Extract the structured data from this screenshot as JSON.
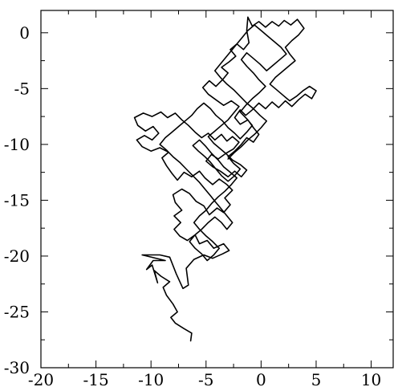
{
  "chart_data": {
    "type": "line",
    "title": "",
    "xlabel": "",
    "ylabel": "",
    "xlim": [
      -20,
      12
    ],
    "ylim": [
      -30,
      2
    ],
    "x_ticks": [
      -20,
      -15,
      -10,
      -5,
      0,
      5,
      10
    ],
    "y_ticks": [
      -30,
      -25,
      -20,
      -15,
      -10,
      -5,
      0
    ],
    "x_tick_labels": [
      "-20",
      "-15",
      "-10",
      "-5",
      "0",
      "5",
      "10"
    ],
    "y_tick_labels": [
      "-30",
      "-25",
      "-20",
      "-15",
      "-10",
      "-5",
      "0"
    ],
    "x_minor_step": 2.5,
    "y_minor_step": 2.5,
    "grid": false,
    "legend": "none",
    "line_color": "#000000",
    "series": [
      {
        "points": [
          [
            -6.4,
            -27.6
          ],
          [
            -6.3,
            -26.9
          ],
          [
            -7.0,
            -26.5
          ],
          [
            -7.8,
            -26.0
          ],
          [
            -8.2,
            -25.5
          ],
          [
            -7.6,
            -25.0
          ],
          [
            -8.0,
            -24.3
          ],
          [
            -8.6,
            -23.5
          ],
          [
            -8.9,
            -22.8
          ],
          [
            -8.3,
            -22.3
          ],
          [
            -9.1,
            -21.8
          ],
          [
            -9.7,
            -21.3
          ],
          [
            -9.4,
            -22.4
          ],
          [
            -9.9,
            -20.8
          ],
          [
            -10.4,
            -21.2
          ],
          [
            -9.8,
            -20.4
          ],
          [
            -8.7,
            -20.4
          ],
          [
            -10.8,
            -19.9
          ],
          [
            -9.2,
            -19.9
          ],
          [
            -8.3,
            -20.1
          ],
          [
            -7.7,
            -21.6
          ],
          [
            -7.1,
            -22.9
          ],
          [
            -6.6,
            -22.6
          ],
          [
            -6.8,
            -21.1
          ],
          [
            -6.1,
            -20.3
          ],
          [
            -5.2,
            -19.9
          ],
          [
            -4.4,
            -20.2
          ],
          [
            -3.5,
            -19.8
          ],
          [
            -2.9,
            -19.5
          ],
          [
            -3.4,
            -18.9
          ],
          [
            -4.3,
            -19.3
          ],
          [
            -4.9,
            -18.6
          ],
          [
            -5.6,
            -18.9
          ],
          [
            -6.0,
            -18.1
          ],
          [
            -6.7,
            -18.6
          ],
          [
            -7.4,
            -18.2
          ],
          [
            -7.9,
            -17.6
          ],
          [
            -7.3,
            -17.0
          ],
          [
            -7.9,
            -16.4
          ],
          [
            -7.2,
            -15.9
          ],
          [
            -7.8,
            -15.2
          ],
          [
            -8.0,
            -14.5
          ],
          [
            -7.2,
            -14.0
          ],
          [
            -6.5,
            -14.4
          ],
          [
            -5.9,
            -15.1
          ],
          [
            -5.2,
            -15.5
          ],
          [
            -4.7,
            -16.3
          ],
          [
            -4.0,
            -15.7
          ],
          [
            -3.4,
            -16.1
          ],
          [
            -2.8,
            -15.4
          ],
          [
            -3.3,
            -14.8
          ],
          [
            -2.6,
            -14.1
          ],
          [
            -3.1,
            -13.6
          ],
          [
            -3.8,
            -13.1
          ],
          [
            -4.4,
            -13.6
          ],
          [
            -5.1,
            -13.0
          ],
          [
            -5.6,
            -12.4
          ],
          [
            -6.3,
            -12.9
          ],
          [
            -7.0,
            -12.5
          ],
          [
            -7.6,
            -13.2
          ],
          [
            -8.1,
            -12.6
          ],
          [
            -8.6,
            -11.9
          ],
          [
            -9.0,
            -11.2
          ],
          [
            -8.4,
            -10.7
          ],
          [
            -9.2,
            -10.3
          ],
          [
            -10.0,
            -10.6
          ],
          [
            -10.8,
            -10.2
          ],
          [
            -11.3,
            -9.6
          ],
          [
            -10.6,
            -9.2
          ],
          [
            -9.9,
            -9.6
          ],
          [
            -9.3,
            -9.0
          ],
          [
            -9.8,
            -8.4
          ],
          [
            -10.5,
            -8.8
          ],
          [
            -11.2,
            -8.3
          ],
          [
            -11.5,
            -7.6
          ],
          [
            -10.7,
            -7.2
          ],
          [
            -9.9,
            -7.5
          ],
          [
            -9.1,
            -7.1
          ],
          [
            -8.5,
            -7.6
          ],
          [
            -7.8,
            -7.2
          ],
          [
            -7.2,
            -7.8
          ],
          [
            -6.6,
            -8.3
          ],
          [
            -6.0,
            -8.9
          ],
          [
            -5.4,
            -9.4
          ],
          [
            -4.8,
            -9.0
          ],
          [
            -4.2,
            -9.6
          ],
          [
            -3.6,
            -9.1
          ],
          [
            -3.1,
            -9.7
          ],
          [
            -2.6,
            -9.3
          ],
          [
            -2.0,
            -9.8
          ],
          [
            -2.5,
            -10.4
          ],
          [
            -3.2,
            -10.8
          ],
          [
            -3.9,
            -11.3
          ],
          [
            -4.5,
            -10.9
          ],
          [
            -5.0,
            -11.5
          ],
          [
            -4.4,
            -12.0
          ],
          [
            -3.7,
            -12.4
          ],
          [
            -3.0,
            -12.9
          ],
          [
            -2.4,
            -12.4
          ],
          [
            -1.8,
            -12.9
          ],
          [
            -1.3,
            -12.3
          ],
          [
            -1.9,
            -11.8
          ],
          [
            -2.6,
            -11.4
          ],
          [
            -3.1,
            -10.9
          ],
          [
            -3.7,
            -10.4
          ],
          [
            -4.3,
            -9.9
          ],
          [
            -4.8,
            -9.3
          ],
          [
            -4.2,
            -8.8
          ],
          [
            -3.6,
            -8.3
          ],
          [
            -3.0,
            -7.8
          ],
          [
            -2.5,
            -7.2
          ],
          [
            -2.0,
            -6.6
          ],
          [
            -2.7,
            -6.1
          ],
          [
            -3.4,
            -6.5
          ],
          [
            -4.1,
            -6.0
          ],
          [
            -4.8,
            -5.5
          ],
          [
            -5.3,
            -4.9
          ],
          [
            -4.7,
            -4.3
          ],
          [
            -4.1,
            -4.8
          ],
          [
            -3.5,
            -4.2
          ],
          [
            -3.0,
            -3.6
          ],
          [
            -3.6,
            -3.1
          ],
          [
            -2.9,
            -2.6
          ],
          [
            -2.3,
            -2.1
          ],
          [
            -2.8,
            -1.5
          ],
          [
            -2.2,
            -1.0
          ],
          [
            -1.6,
            -1.5
          ],
          [
            -1.1,
            -0.9
          ],
          [
            -1.3,
            0.2
          ],
          [
            -1.2,
            1.4
          ],
          [
            -0.8,
            0.6
          ],
          [
            -0.2,
            1.0
          ],
          [
            0.4,
            0.5
          ],
          [
            1.0,
            1.0
          ],
          [
            1.6,
            0.6
          ],
          [
            2.1,
            1.1
          ],
          [
            2.7,
            0.7
          ],
          [
            3.3,
            1.2
          ],
          [
            3.9,
            0.4
          ],
          [
            3.4,
            -0.2
          ],
          [
            2.8,
            -0.7
          ],
          [
            2.2,
            -1.3
          ],
          [
            2.6,
            -1.9
          ],
          [
            3.1,
            -2.5
          ],
          [
            2.5,
            -3.0
          ],
          [
            1.9,
            -3.5
          ],
          [
            1.3,
            -4.0
          ],
          [
            0.8,
            -4.6
          ],
          [
            1.4,
            -5.1
          ],
          [
            2.0,
            -5.6
          ],
          [
            2.6,
            -6.1
          ],
          [
            3.2,
            -5.7
          ],
          [
            3.8,
            -5.2
          ],
          [
            4.4,
            -4.8
          ],
          [
            5.0,
            -5.2
          ],
          [
            4.6,
            -5.9
          ],
          [
            4.0,
            -5.5
          ],
          [
            3.4,
            -6.0
          ],
          [
            2.8,
            -6.6
          ],
          [
            2.2,
            -6.1
          ],
          [
            1.6,
            -6.7
          ],
          [
            1.0,
            -6.2
          ],
          [
            0.4,
            -6.8
          ],
          [
            -0.2,
            -6.3
          ],
          [
            -0.8,
            -6.9
          ],
          [
            -1.4,
            -7.4
          ],
          [
            -1.9,
            -6.9
          ],
          [
            -2.4,
            -7.6
          ],
          [
            -1.9,
            -8.2
          ],
          [
            -1.2,
            -7.8
          ],
          [
            -0.7,
            -8.5
          ],
          [
            -0.2,
            -9.1
          ],
          [
            -0.7,
            -9.8
          ],
          [
            -1.3,
            -9.4
          ],
          [
            -1.8,
            -10.0
          ],
          [
            -2.4,
            -10.6
          ],
          [
            -3.0,
            -11.1
          ],
          [
            -2.5,
            -11.7
          ],
          [
            -1.9,
            -12.2
          ],
          [
            -2.4,
            -12.8
          ],
          [
            -3.0,
            -13.3
          ],
          [
            -3.6,
            -12.8
          ],
          [
            -4.1,
            -12.2
          ],
          [
            -4.6,
            -11.6
          ],
          [
            -5.1,
            -11.1
          ],
          [
            -5.7,
            -10.6
          ],
          [
            -6.2,
            -10.1
          ],
          [
            -5.6,
            -9.6
          ],
          [
            -5.0,
            -10.2
          ],
          [
            -4.5,
            -10.8
          ],
          [
            -3.9,
            -11.4
          ],
          [
            -3.4,
            -12.0
          ],
          [
            -2.8,
            -12.5
          ],
          [
            -2.2,
            -13.0
          ],
          [
            -2.7,
            -13.6
          ],
          [
            -3.3,
            -14.2
          ],
          [
            -3.9,
            -14.7
          ],
          [
            -4.5,
            -15.3
          ],
          [
            -5.0,
            -15.9
          ],
          [
            -5.6,
            -16.4
          ],
          [
            -6.1,
            -17.0
          ],
          [
            -5.6,
            -17.6
          ],
          [
            -5.0,
            -18.2
          ],
          [
            -4.4,
            -18.7
          ],
          [
            -3.8,
            -19.3
          ],
          [
            -4.3,
            -19.9
          ],
          [
            -4.9,
            -20.4
          ],
          [
            -5.4,
            -19.8
          ],
          [
            -6.0,
            -19.3
          ],
          [
            -6.5,
            -18.7
          ],
          [
            -6.0,
            -18.1
          ],
          [
            -5.4,
            -17.6
          ],
          [
            -4.8,
            -17.0
          ],
          [
            -4.2,
            -16.5
          ],
          [
            -3.6,
            -17.0
          ],
          [
            -3.1,
            -17.6
          ],
          [
            -2.6,
            -17.0
          ],
          [
            -3.1,
            -16.4
          ],
          [
            -3.6,
            -15.8
          ],
          [
            -4.1,
            -15.2
          ],
          [
            -4.6,
            -14.6
          ],
          [
            -5.1,
            -14.0
          ],
          [
            -5.6,
            -13.4
          ],
          [
            -6.2,
            -12.8
          ],
          [
            -6.8,
            -12.2
          ],
          [
            -7.4,
            -11.6
          ],
          [
            -8.0,
            -11.1
          ],
          [
            -8.6,
            -10.5
          ],
          [
            -9.2,
            -10.0
          ],
          [
            -8.7,
            -9.4
          ],
          [
            -8.1,
            -8.9
          ],
          [
            -7.5,
            -8.4
          ],
          [
            -6.9,
            -7.9
          ],
          [
            -6.3,
            -7.4
          ],
          [
            -5.8,
            -6.8
          ],
          [
            -5.2,
            -6.3
          ],
          [
            -4.6,
            -6.8
          ],
          [
            -4.1,
            -7.4
          ],
          [
            -3.5,
            -7.9
          ],
          [
            -3.0,
            -8.5
          ],
          [
            -2.4,
            -9.0
          ],
          [
            -1.9,
            -9.5
          ],
          [
            -1.3,
            -8.9
          ],
          [
            -0.8,
            -8.3
          ],
          [
            -1.3,
            -7.7
          ],
          [
            -1.9,
            -7.1
          ],
          [
            -1.4,
            -6.5
          ],
          [
            -0.8,
            -5.9
          ],
          [
            -0.2,
            -5.4
          ],
          [
            0.4,
            -4.8
          ],
          [
            -0.2,
            -4.2
          ],
          [
            -0.7,
            -3.6
          ],
          [
            -1.3,
            -3.0
          ],
          [
            -1.8,
            -2.4
          ],
          [
            -1.3,
            -1.8
          ],
          [
            -0.7,
            -2.3
          ],
          [
            -0.1,
            -2.8
          ],
          [
            0.5,
            -3.4
          ],
          [
            1.1,
            -2.9
          ],
          [
            1.7,
            -2.4
          ],
          [
            2.3,
            -1.9
          ],
          [
            1.8,
            -1.3
          ],
          [
            1.2,
            -0.8
          ],
          [
            0.6,
            -0.3
          ],
          [
            0.0,
            0.2
          ],
          [
            -0.6,
            0.7
          ],
          [
            -1.2,
            0.2
          ],
          [
            -1.7,
            -0.4
          ],
          [
            -2.2,
            -1.0
          ],
          [
            -2.7,
            -1.6
          ],
          [
            -3.2,
            -2.2
          ],
          [
            -3.7,
            -2.8
          ],
          [
            -4.2,
            -3.4
          ],
          [
            -3.7,
            -4.0
          ],
          [
            -3.1,
            -4.6
          ],
          [
            -2.5,
            -5.1
          ],
          [
            -1.9,
            -5.7
          ],
          [
            -1.3,
            -6.3
          ],
          [
            -0.7,
            -6.8
          ],
          [
            -0.1,
            -7.4
          ],
          [
            0.5,
            -7.9
          ],
          [
            0.0,
            -8.5
          ],
          [
            -0.6,
            -9.1
          ],
          [
            -1.2,
            -9.6
          ],
          [
            -1.8,
            -10.2
          ],
          [
            -2.4,
            -10.7
          ],
          [
            -3.0,
            -11.3
          ]
        ]
      }
    ]
  }
}
